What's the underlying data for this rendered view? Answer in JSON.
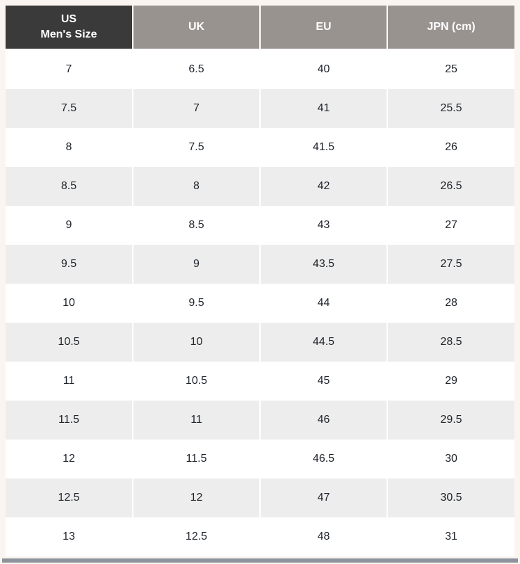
{
  "page": {
    "background_color": "#faf5f0",
    "stripe_color": "#ededed",
    "header_dark_color": "#3a3a3a",
    "header_gray_color": "#999390",
    "body_text_color": "#20252d",
    "scrollbar_color": "#8d939c"
  },
  "table": {
    "headers": [
      "US\nMen's Size",
      "UK",
      "EU",
      "JPN (cm)"
    ],
    "rows": [
      [
        "7",
        "6.5",
        "40",
        "25"
      ],
      [
        "7.5",
        "7",
        "41",
        "25.5"
      ],
      [
        "8",
        "7.5",
        "41.5",
        "26"
      ],
      [
        "8.5",
        "8",
        "42",
        "26.5"
      ],
      [
        "9",
        "8.5",
        "43",
        "27"
      ],
      [
        "9.5",
        "9",
        "43.5",
        "27.5"
      ],
      [
        "10",
        "9.5",
        "44",
        "28"
      ],
      [
        "10.5",
        "10",
        "44.5",
        "28.5"
      ],
      [
        "11",
        "10.5",
        "45",
        "29"
      ],
      [
        "11.5",
        "11",
        "46",
        "29.5"
      ],
      [
        "12",
        "11.5",
        "46.5",
        "30"
      ],
      [
        "12.5",
        "12",
        "47",
        "30.5"
      ],
      [
        "13",
        "12.5",
        "48",
        "31"
      ]
    ]
  }
}
